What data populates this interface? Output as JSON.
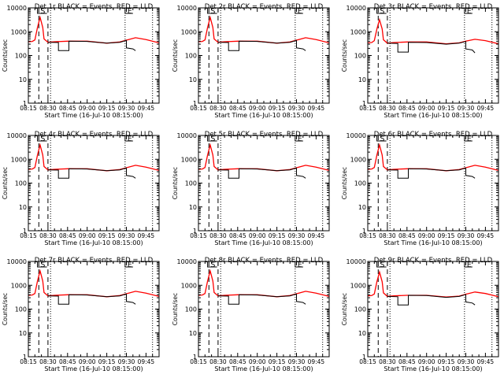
{
  "colors": {
    "events": "#000000",
    "lld": "#ff0000",
    "background": "#ffffff",
    "axes": "#000000"
  },
  "chart_data": [
    {
      "type": "line",
      "title": "Det 1r BLACK = Events, RED = LLD",
      "xlabel": "Start Time (16-Jul-10 08:15:00)",
      "ylabel": "Counts/sec",
      "xticks": [
        "08:15",
        "08:30",
        "08:45",
        "09:00",
        "09:15",
        "09:30",
        "09:45"
      ],
      "yticks": [
        "1",
        "10",
        "100",
        "1000",
        "10000"
      ],
      "xlim": [
        "08:15",
        "09:55"
      ],
      "ylim": [
        1,
        10000
      ],
      "yscale": "log",
      "markers": [
        "S",
        "E"
      ],
      "series": [
        {
          "color": "red",
          "x": [
            "08:15",
            "08:18",
            "08:20",
            "08:22",
            "08:24",
            "08:26",
            "08:27",
            "08:30",
            "08:35",
            "08:45",
            "09:00",
            "09:15",
            "09:25",
            "09:30",
            "09:37",
            "09:45",
            "09:55"
          ],
          "y": [
            380,
            390,
            450,
            1500,
            4000,
            1500,
            500,
            360,
            380,
            400,
            400,
            330,
            370,
            440,
            560,
            470,
            340
          ]
        },
        {
          "color": "black",
          "x": [
            "08:30",
            "08:38",
            "08:38",
            "08:46",
            "08:46",
            "09:00",
            "09:15",
            "09:25",
            "09:30",
            "09:30",
            "09:35",
            "09:37"
          ],
          "y": [
            360,
            350,
            160,
            160,
            400,
            390,
            330,
            360,
            430,
            210,
            190,
            160
          ]
        }
      ]
    },
    {
      "type": "line",
      "title": "Det 2r BLACK = Events, RED = LLD",
      "xlabel": "Start Time (16-Jul-10 08:15:00)",
      "ylabel": "Counts/sec",
      "xticks": [
        "08:15",
        "08:30",
        "08:45",
        "09:00",
        "09:15",
        "09:30",
        "09:45"
      ],
      "yticks": [
        "1",
        "10",
        "100",
        "1000",
        "10000"
      ],
      "xlim": [
        "08:15",
        "09:55"
      ],
      "ylim": [
        1,
        10000
      ],
      "yscale": "log",
      "markers": [
        "S",
        "E"
      ],
      "series": [
        {
          "color": "red",
          "x": [
            "08:15",
            "08:18",
            "08:20",
            "08:22",
            "08:24",
            "08:26",
            "08:27",
            "08:30",
            "08:35",
            "08:45",
            "09:00",
            "09:15",
            "09:25",
            "09:30",
            "09:37",
            "09:45",
            "09:55"
          ],
          "y": [
            380,
            390,
            450,
            1500,
            4000,
            1500,
            500,
            360,
            380,
            400,
            400,
            330,
            370,
            440,
            560,
            470,
            340
          ]
        },
        {
          "color": "black",
          "x": [
            "08:30",
            "08:38",
            "08:38",
            "08:46",
            "08:46",
            "09:00",
            "09:15",
            "09:25",
            "09:30",
            "09:30",
            "09:35",
            "09:37"
          ],
          "y": [
            360,
            350,
            160,
            160,
            400,
            390,
            330,
            360,
            430,
            210,
            190,
            160
          ]
        }
      ]
    },
    {
      "type": "line",
      "title": "Det 3r BLACK = Events, RED = LLD",
      "xlabel": "Start Time (16-Jul-10 08:15:00)",
      "ylabel": "Counts/sec",
      "xticks": [
        "08:15",
        "08:30",
        "08:45",
        "09:00",
        "09:15",
        "09:30",
        "09:45"
      ],
      "yticks": [
        "1",
        "10",
        "100",
        "1000",
        "10000"
      ],
      "xlim": [
        "08:15",
        "09:55"
      ],
      "ylim": [
        1,
        10000
      ],
      "yscale": "log",
      "markers": [
        "S",
        "E"
      ],
      "series": [
        {
          "color": "red",
          "x": [
            "08:15",
            "08:18",
            "08:20",
            "08:22",
            "08:24",
            "08:26",
            "08:27",
            "08:30",
            "08:35",
            "08:45",
            "09:00",
            "09:15",
            "09:25",
            "09:30",
            "09:37",
            "09:45",
            "09:55"
          ],
          "y": [
            340,
            350,
            420,
            1300,
            3200,
            1300,
            460,
            330,
            350,
            370,
            370,
            310,
            340,
            400,
            480,
            420,
            310
          ]
        },
        {
          "color": "black",
          "x": [
            "08:30",
            "08:38",
            "08:38",
            "08:46",
            "08:46",
            "09:00",
            "09:15",
            "09:25",
            "09:30",
            "09:30",
            "09:35",
            "09:37"
          ],
          "y": [
            330,
            320,
            140,
            140,
            360,
            350,
            300,
            330,
            390,
            190,
            170,
            130
          ]
        }
      ]
    },
    {
      "type": "line",
      "title": "Det 4r BLACK = Events, RED = LLD",
      "xlabel": "Start Time (16-Jul-10 08:15:00)",
      "ylabel": "Counts/sec",
      "xticks": [
        "08:15",
        "08:30",
        "08:45",
        "09:00",
        "09:15",
        "09:30",
        "09:45"
      ],
      "yticks": [
        "1",
        "10",
        "100",
        "1000",
        "10000"
      ],
      "xlim": [
        "08:15",
        "09:55"
      ],
      "ylim": [
        1,
        10000
      ],
      "yscale": "log",
      "markers": [
        "S",
        "E"
      ],
      "series": [
        {
          "color": "red",
          "x": [
            "08:15",
            "08:18",
            "08:20",
            "08:22",
            "08:24",
            "08:26",
            "08:27",
            "08:30",
            "08:35",
            "08:45",
            "09:00",
            "09:15",
            "09:25",
            "09:30",
            "09:37",
            "09:45",
            "09:55"
          ],
          "y": [
            380,
            390,
            450,
            1500,
            4000,
            1500,
            500,
            360,
            380,
            400,
            400,
            330,
            370,
            440,
            560,
            470,
            340
          ]
        },
        {
          "color": "black",
          "x": [
            "08:30",
            "08:38",
            "08:38",
            "08:46",
            "08:46",
            "09:00",
            "09:15",
            "09:25",
            "09:30",
            "09:30",
            "09:35",
            "09:37"
          ],
          "y": [
            360,
            350,
            160,
            160,
            400,
            390,
            330,
            360,
            430,
            210,
            190,
            160
          ]
        }
      ]
    },
    {
      "type": "line",
      "title": "Det 5r BLACK = Events, RED = LLD",
      "xlabel": "Start Time (16-Jul-10 08:15:00)",
      "ylabel": "Counts/sec",
      "xticks": [
        "08:15",
        "08:30",
        "08:45",
        "09:00",
        "09:15",
        "09:30",
        "09:45"
      ],
      "yticks": [
        "1",
        "10",
        "100",
        "1000",
        "10000"
      ],
      "xlim": [
        "08:15",
        "09:55"
      ],
      "ylim": [
        1,
        10000
      ],
      "yscale": "log",
      "markers": [
        "S",
        "E"
      ],
      "series": [
        {
          "color": "red",
          "x": [
            "08:15",
            "08:18",
            "08:20",
            "08:22",
            "08:24",
            "08:26",
            "08:27",
            "08:30",
            "08:35",
            "08:45",
            "09:00",
            "09:15",
            "09:25",
            "09:30",
            "09:37",
            "09:45",
            "09:55"
          ],
          "y": [
            380,
            390,
            450,
            1500,
            4000,
            1500,
            500,
            360,
            380,
            400,
            400,
            330,
            370,
            440,
            560,
            470,
            340
          ]
        },
        {
          "color": "black",
          "x": [
            "08:30",
            "08:38",
            "08:38",
            "08:46",
            "08:46",
            "09:00",
            "09:15",
            "09:25",
            "09:30",
            "09:30",
            "09:35",
            "09:37"
          ],
          "y": [
            360,
            350,
            160,
            160,
            400,
            390,
            330,
            360,
            430,
            210,
            190,
            160
          ]
        }
      ]
    },
    {
      "type": "line",
      "title": "Det 6r BLACK = Events, RED = LLD",
      "xlabel": "Start Time (16-Jul-10 08:15:00)",
      "ylabel": "Counts/sec",
      "xticks": [
        "08:15",
        "08:30",
        "08:45",
        "09:00",
        "09:15",
        "09:30",
        "09:45"
      ],
      "yticks": [
        "1",
        "10",
        "100",
        "1000",
        "10000"
      ],
      "xlim": [
        "08:15",
        "09:55"
      ],
      "ylim": [
        1,
        10000
      ],
      "yscale": "log",
      "markers": [
        "S",
        "E"
      ],
      "series": [
        {
          "color": "red",
          "x": [
            "08:15",
            "08:18",
            "08:20",
            "08:22",
            "08:24",
            "08:26",
            "08:27",
            "08:30",
            "08:35",
            "08:45",
            "09:00",
            "09:15",
            "09:25",
            "09:30",
            "09:37",
            "09:45",
            "09:55"
          ],
          "y": [
            380,
            390,
            450,
            1500,
            4000,
            1500,
            500,
            360,
            380,
            400,
            400,
            330,
            370,
            440,
            560,
            470,
            340
          ]
        },
        {
          "color": "black",
          "x": [
            "08:30",
            "08:38",
            "08:38",
            "08:46",
            "08:46",
            "09:00",
            "09:15",
            "09:25",
            "09:30",
            "09:30",
            "09:35",
            "09:37"
          ],
          "y": [
            360,
            350,
            160,
            160,
            400,
            390,
            330,
            360,
            430,
            210,
            190,
            160
          ]
        }
      ]
    },
    {
      "type": "line",
      "title": "Det 7r BLACK = Events, RED = LLD",
      "xlabel": "Start Time (16-Jul-10 08:15:00)",
      "ylabel": "Counts/sec",
      "xticks": [
        "08:15",
        "08:30",
        "08:45",
        "09:00",
        "09:15",
        "09:30",
        "09:45"
      ],
      "yticks": [
        "1",
        "10",
        "100",
        "1000",
        "10000"
      ],
      "xlim": [
        "08:15",
        "09:55"
      ],
      "ylim": [
        1,
        10000
      ],
      "yscale": "log",
      "markers": [
        "S",
        "E"
      ],
      "series": [
        {
          "color": "red",
          "x": [
            "08:15",
            "08:18",
            "08:20",
            "08:22",
            "08:24",
            "08:26",
            "08:27",
            "08:30",
            "08:35",
            "08:45",
            "09:00",
            "09:15",
            "09:25",
            "09:30",
            "09:37",
            "09:45",
            "09:55"
          ],
          "y": [
            380,
            390,
            450,
            1500,
            4000,
            1500,
            500,
            360,
            380,
            400,
            400,
            330,
            370,
            440,
            560,
            470,
            340
          ]
        },
        {
          "color": "black",
          "x": [
            "08:30",
            "08:38",
            "08:38",
            "08:46",
            "08:46",
            "09:00",
            "09:15",
            "09:25",
            "09:30",
            "09:30",
            "09:35",
            "09:37"
          ],
          "y": [
            360,
            350,
            160,
            160,
            400,
            390,
            330,
            360,
            430,
            210,
            190,
            160
          ]
        }
      ]
    },
    {
      "type": "line",
      "title": "Det 8r BLACK = Events, RED = LLD",
      "xlabel": "Start Time (16-Jul-10 08:15:00)",
      "ylabel": "Counts/sec",
      "xticks": [
        "08:15",
        "08:30",
        "08:45",
        "09:00",
        "09:15",
        "09:30",
        "09:45"
      ],
      "yticks": [
        "1",
        "10",
        "100",
        "1000",
        "10000"
      ],
      "xlim": [
        "08:15",
        "09:55"
      ],
      "ylim": [
        1,
        10000
      ],
      "yscale": "log",
      "markers": [
        "S",
        "E"
      ],
      "series": [
        {
          "color": "red",
          "x": [
            "08:15",
            "08:18",
            "08:20",
            "08:22",
            "08:24",
            "08:26",
            "08:27",
            "08:30",
            "08:35",
            "08:45",
            "09:00",
            "09:15",
            "09:25",
            "09:30",
            "09:37",
            "09:45",
            "09:55"
          ],
          "y": [
            380,
            390,
            450,
            1500,
            4000,
            1500,
            500,
            360,
            380,
            400,
            400,
            330,
            370,
            440,
            560,
            470,
            340
          ]
        },
        {
          "color": "black",
          "x": [
            "08:30",
            "08:38",
            "08:38",
            "08:46",
            "08:46",
            "09:00",
            "09:15",
            "09:25",
            "09:30",
            "09:30",
            "09:35",
            "09:37"
          ],
          "y": [
            360,
            350,
            160,
            160,
            400,
            390,
            330,
            360,
            430,
            210,
            190,
            160
          ]
        }
      ]
    },
    {
      "type": "line",
      "title": "Det 9r BLACK = Events, RED = LLD",
      "xlabel": "Start Time (16-Jul-10 08:15:00)",
      "ylabel": "Counts/sec",
      "xticks": [
        "08:15",
        "08:30",
        "08:45",
        "09:00",
        "09:15",
        "09:30",
        "09:45"
      ],
      "yticks": [
        "1",
        "10",
        "100",
        "1000",
        "10000"
      ],
      "xlim": [
        "08:15",
        "09:55"
      ],
      "ylim": [
        1,
        10000
      ],
      "yscale": "log",
      "markers": [
        "S",
        "E"
      ],
      "series": [
        {
          "color": "red",
          "x": [
            "08:15",
            "08:18",
            "08:20",
            "08:22",
            "08:24",
            "08:26",
            "08:27",
            "08:30",
            "08:35",
            "08:45",
            "09:00",
            "09:15",
            "09:25",
            "09:30",
            "09:37",
            "09:45",
            "09:55"
          ],
          "y": [
            360,
            370,
            430,
            1400,
            3600,
            1400,
            480,
            340,
            360,
            380,
            380,
            320,
            350,
            420,
            520,
            450,
            330
          ]
        },
        {
          "color": "black",
          "x": [
            "08:30",
            "08:38",
            "08:38",
            "08:46",
            "08:46",
            "09:00",
            "09:15",
            "09:25",
            "09:30",
            "09:30",
            "09:35",
            "09:37"
          ],
          "y": [
            340,
            330,
            150,
            150,
            380,
            370,
            310,
            340,
            410,
            200,
            180,
            150
          ]
        }
      ]
    }
  ]
}
